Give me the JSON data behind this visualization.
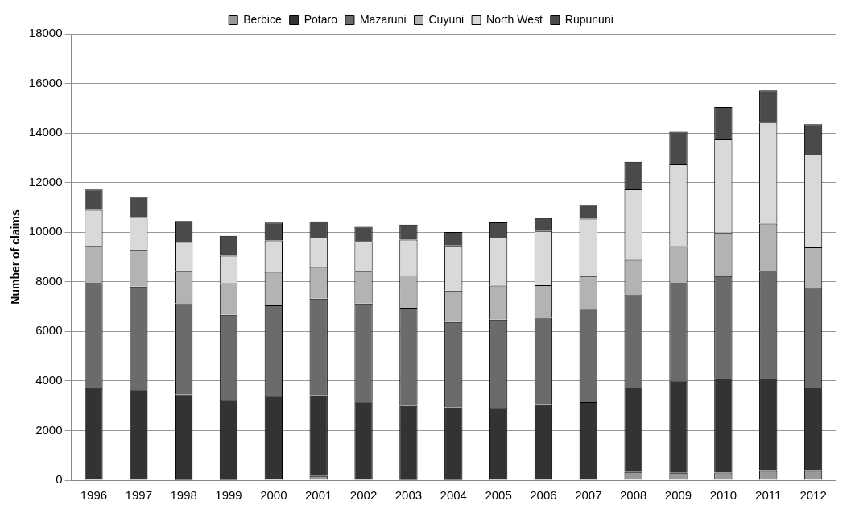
{
  "chart_data": {
    "type": "bar",
    "stacked": true,
    "ylabel": "Number of claims",
    "categories": [
      "1996",
      "1997",
      "1998",
      "1999",
      "2000",
      "2001",
      "2002",
      "2003",
      "2004",
      "2005",
      "2006",
      "2007",
      "2008",
      "2009",
      "2010",
      "2011",
      "2012"
    ],
    "ylim": [
      0,
      18000
    ],
    "yticks": [
      0,
      2000,
      4000,
      6000,
      8000,
      10000,
      12000,
      14000,
      16000,
      18000
    ],
    "grid": "y",
    "legend": "top",
    "series": [
      {
        "name": "Berbice",
        "color": "#999999",
        "values": [
          40,
          20,
          10,
          10,
          40,
          170,
          20,
          10,
          10,
          0,
          0,
          0,
          330,
          300,
          310,
          370,
          370
        ]
      },
      {
        "name": "Potaro",
        "color": "#333333",
        "values": [
          3670,
          3640,
          3450,
          3220,
          3360,
          3250,
          3160,
          2990,
          2930,
          2910,
          3030,
          3150,
          3410,
          3710,
          3810,
          3720,
          3370
        ]
      },
      {
        "name": "Mazaruni",
        "color": "#6b6b6b",
        "values": [
          4240,
          4150,
          3670,
          3440,
          3650,
          3900,
          3940,
          3950,
          3440,
          3560,
          3520,
          3760,
          3750,
          3940,
          4110,
          4350,
          4010
        ]
      },
      {
        "name": "Cuyuni",
        "color": "#b3b3b3",
        "values": [
          1500,
          1490,
          1310,
          1270,
          1350,
          1270,
          1320,
          1300,
          1260,
          1380,
          1310,
          1320,
          1400,
          1490,
          1750,
          1910,
          1640
        ]
      },
      {
        "name": "North West",
        "color": "#d9d9d9",
        "values": [
          1450,
          1310,
          1160,
          1110,
          1270,
          1190,
          1200,
          1450,
          1820,
          1930,
          2190,
          2310,
          2840,
          3300,
          3760,
          4070,
          3740
        ]
      },
      {
        "name": "Rupununi",
        "color": "#4a4a4a",
        "values": [
          820,
          820,
          850,
          800,
          720,
          660,
          580,
          610,
          550,
          620,
          520,
          560,
          1110,
          1310,
          1300,
          1300,
          1220
        ]
      }
    ]
  }
}
